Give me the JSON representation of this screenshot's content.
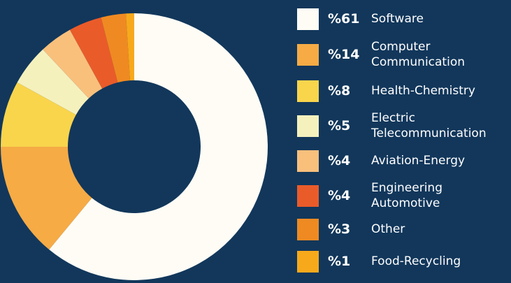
{
  "chart_data": {
    "type": "donut",
    "categories": [
      "Software",
      "Computer Communication",
      "Health-Chemistry",
      "Electric Telecommunication",
      "Aviation-Energy",
      "Engineering Automotive",
      "Other",
      "Food-Recycling"
    ],
    "values": [
      61,
      14,
      8,
      5,
      4,
      4,
      3,
      1
    ],
    "value_labels": [
      "%61",
      "%14",
      "%8",
      "%5",
      "%4",
      "%4",
      "%3",
      "%1"
    ],
    "colors": [
      "#fefcf5",
      "#f6ab45",
      "#f9d54c",
      "#f5f1bd",
      "#f9c07c",
      "#ea5b2a",
      "#ef8a22",
      "#f7a91c"
    ]
  }
}
